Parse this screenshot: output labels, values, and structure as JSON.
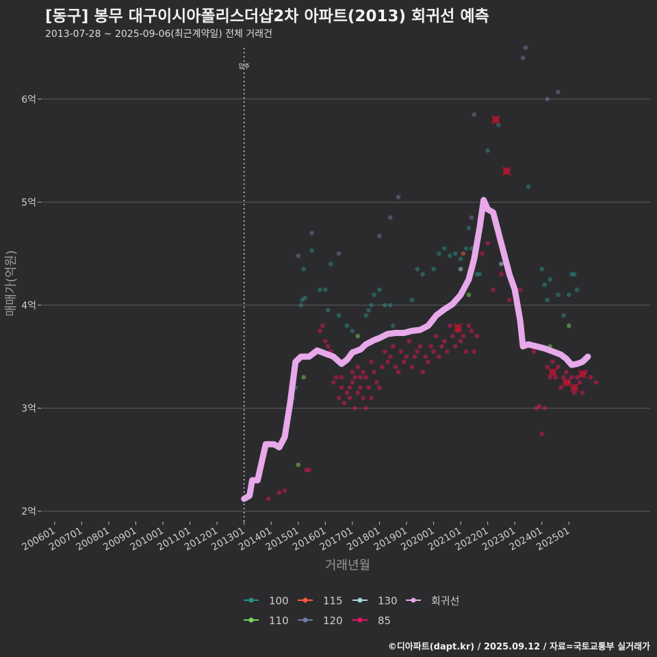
{
  "title": "[동구] 봉무 대구이시아폴리스더샵2차 아파트(2013) 회귀선 예측",
  "subtitle": "2013-07-28 ~ 2025-09-06(최근계약일) 전체 거래건",
  "footer": "©디아파트(dapt.kr) / 2025.09.12 / 자료=국토교통부 실거래가",
  "chart_data": {
    "type": "scatter",
    "xlabel": "거래년월",
    "ylabel": "매매가(억원)",
    "xlim": [
      2005.5,
      2028.0
    ],
    "ylim": [
      1.9,
      6.55
    ],
    "x_ticks": [
      "200601",
      "200701",
      "200801",
      "200901",
      "201001",
      "201101",
      "201201",
      "201301",
      "201401",
      "201501",
      "201601",
      "201701",
      "201801",
      "201901",
      "202001",
      "202101",
      "202201",
      "202301",
      "202401",
      "202501"
    ],
    "y_ticks": [
      {
        "value": 2,
        "label": "2억"
      },
      {
        "value": 3,
        "label": "3억"
      },
      {
        "value": 4,
        "label": "4억"
      },
      {
        "value": 5,
        "label": "5억"
      },
      {
        "value": 6,
        "label": "6억"
      }
    ],
    "move_in": {
      "x": 2013.0,
      "label": "입주"
    },
    "legend": [
      {
        "name": "100",
        "color": "#2a8f8a"
      },
      {
        "name": "110",
        "color": "#7bd35b"
      },
      {
        "name": "115",
        "color": "#ff5a3c"
      },
      {
        "name": "120",
        "color": "#6f7aa8"
      },
      {
        "name": "130",
        "color": "#a8d9dd"
      },
      {
        "name": "85",
        "color": "#e8135e"
      },
      {
        "name": "회귀선",
        "color": "#e7a9ea"
      }
    ],
    "series": [
      {
        "name": "100",
        "color": "#2a8f8a",
        "points": [
          [
            2014.8,
            3.1
          ],
          [
            2014.9,
            3.2
          ],
          [
            2015.1,
            4.0
          ],
          [
            2015.15,
            4.05
          ],
          [
            2015.2,
            4.35
          ],
          [
            2015.25,
            4.07
          ],
          [
            2015.5,
            4.53
          ],
          [
            2015.8,
            4.15
          ],
          [
            2016.0,
            4.15
          ],
          [
            2016.1,
            3.95
          ],
          [
            2016.2,
            4.4
          ],
          [
            2016.5,
            3.9
          ],
          [
            2016.8,
            3.8
          ],
          [
            2017.0,
            3.75
          ],
          [
            2017.5,
            3.9
          ],
          [
            2017.6,
            3.95
          ],
          [
            2017.7,
            4.0
          ],
          [
            2017.8,
            4.1
          ],
          [
            2018.0,
            4.15
          ],
          [
            2018.2,
            4.0
          ],
          [
            2018.4,
            4.0
          ],
          [
            2018.5,
            3.8
          ],
          [
            2019.2,
            4.05
          ],
          [
            2019.4,
            4.35
          ],
          [
            2019.6,
            4.3
          ],
          [
            2020.0,
            4.35
          ],
          [
            2020.2,
            4.5
          ],
          [
            2020.4,
            4.55
          ],
          [
            2020.6,
            4.48
          ],
          [
            2020.8,
            4.5
          ],
          [
            2021.0,
            4.45
          ],
          [
            2021.2,
            4.55
          ],
          [
            2021.3,
            4.75
          ],
          [
            2021.4,
            4.55
          ],
          [
            2021.6,
            4.3
          ],
          [
            2021.7,
            4.3
          ],
          [
            2022.0,
            5.5
          ],
          [
            2022.4,
            5.75
          ],
          [
            2023.5,
            5.15
          ],
          [
            2024.0,
            4.35
          ],
          [
            2024.1,
            4.2
          ],
          [
            2024.2,
            4.05
          ],
          [
            2024.3,
            4.25
          ],
          [
            2024.6,
            4.1
          ],
          [
            2024.8,
            3.9
          ],
          [
            2025.0,
            4.1
          ],
          [
            2025.1,
            4.3
          ],
          [
            2025.2,
            4.3
          ],
          [
            2025.3,
            4.15
          ]
        ]
      },
      {
        "name": "110",
        "color": "#7bd35b",
        "points": [
          [
            2015.0,
            2.45
          ],
          [
            2015.2,
            3.3
          ],
          [
            2017.2,
            3.7
          ],
          [
            2021.3,
            4.1
          ],
          [
            2024.3,
            3.6
          ],
          [
            2025.0,
            3.8
          ]
        ]
      },
      {
        "name": "115",
        "color": "#ff5a3c",
        "points": [
          [
            2021.1,
            4.5
          ],
          [
            2021.9,
            5.0
          ]
        ]
      },
      {
        "name": "120",
        "color": "#6f7aa8",
        "points": [
          [
            2015.0,
            4.48
          ],
          [
            2015.5,
            4.7
          ],
          [
            2016.5,
            4.5
          ],
          [
            2018.0,
            4.67
          ],
          [
            2018.4,
            4.85
          ],
          [
            2018.7,
            5.05
          ],
          [
            2021.5,
            5.85
          ],
          [
            2023.3,
            6.4
          ],
          [
            2023.4,
            6.5
          ],
          [
            2024.2,
            6.0
          ],
          [
            2024.6,
            6.07
          ],
          [
            2021.4,
            4.85
          ]
        ]
      },
      {
        "name": "130",
        "color": "#a8d9dd",
        "points": [
          [
            2021.0,
            4.35
          ],
          [
            2022.5,
            4.4
          ]
        ]
      },
      {
        "name": "85",
        "color": "#e8135e",
        "points": [
          [
            2013.9,
            2.12
          ],
          [
            2014.3,
            2.18
          ],
          [
            2014.5,
            2.2
          ],
          [
            2015.3,
            2.4
          ],
          [
            2015.4,
            2.4
          ],
          [
            2015.8,
            3.75
          ],
          [
            2015.9,
            3.8
          ],
          [
            2016.0,
            3.65
          ],
          [
            2016.1,
            3.6
          ],
          [
            2016.2,
            3.55
          ],
          [
            2016.3,
            3.5
          ],
          [
            2016.3,
            3.25
          ],
          [
            2016.4,
            3.3
          ],
          [
            2016.5,
            3.1
          ],
          [
            2016.6,
            3.3
          ],
          [
            2016.6,
            3.2
          ],
          [
            2016.7,
            3.05
          ],
          [
            2016.8,
            3.15
          ],
          [
            2016.9,
            3.1
          ],
          [
            2016.9,
            3.2
          ],
          [
            2017.0,
            3.25
          ],
          [
            2017.0,
            3.35
          ],
          [
            2017.1,
            3.0
          ],
          [
            2017.1,
            3.3
          ],
          [
            2017.2,
            3.15
          ],
          [
            2017.2,
            3.4
          ],
          [
            2017.3,
            3.3
          ],
          [
            2017.3,
            3.2
          ],
          [
            2017.4,
            3.1
          ],
          [
            2017.4,
            3.35
          ],
          [
            2017.5,
            3.0
          ],
          [
            2017.5,
            3.3
          ],
          [
            2017.6,
            3.2
          ],
          [
            2017.7,
            3.1
          ],
          [
            2017.7,
            3.45
          ],
          [
            2017.8,
            3.35
          ],
          [
            2017.9,
            3.25
          ],
          [
            2018.0,
            3.2
          ],
          [
            2018.1,
            3.4
          ],
          [
            2018.2,
            3.55
          ],
          [
            2018.3,
            3.45
          ],
          [
            2018.4,
            3.5
          ],
          [
            2018.5,
            3.6
          ],
          [
            2018.6,
            3.4
          ],
          [
            2018.7,
            3.35
          ],
          [
            2018.8,
            3.55
          ],
          [
            2018.9,
            3.45
          ],
          [
            2019.0,
            3.5
          ],
          [
            2019.1,
            3.65
          ],
          [
            2019.2,
            3.4
          ],
          [
            2019.3,
            3.5
          ],
          [
            2019.4,
            3.55
          ],
          [
            2019.5,
            3.6
          ],
          [
            2019.6,
            3.35
          ],
          [
            2019.7,
            3.5
          ],
          [
            2019.8,
            3.45
          ],
          [
            2019.9,
            3.6
          ],
          [
            2020.0,
            3.55
          ],
          [
            2020.1,
            3.7
          ],
          [
            2020.2,
            3.5
          ],
          [
            2020.3,
            3.6
          ],
          [
            2020.4,
            3.65
          ],
          [
            2020.5,
            3.55
          ],
          [
            2020.6,
            3.8
          ],
          [
            2020.7,
            3.7
          ],
          [
            2020.8,
            3.6
          ],
          [
            2020.9,
            3.75
          ],
          [
            2021.0,
            3.65
          ],
          [
            2021.1,
            3.7
          ],
          [
            2021.2,
            3.55
          ],
          [
            2021.3,
            3.8
          ],
          [
            2021.4,
            3.75
          ],
          [
            2021.5,
            3.55
          ],
          [
            2021.6,
            3.7
          ],
          [
            2021.8,
            4.5
          ],
          [
            2022.0,
            4.6
          ],
          [
            2022.2,
            4.15
          ],
          [
            2022.5,
            4.3
          ],
          [
            2022.8,
            4.05
          ],
          [
            2023.0,
            4.15
          ],
          [
            2023.2,
            4.15
          ],
          [
            2023.5,
            3.6
          ],
          [
            2023.7,
            3.55
          ],
          [
            2023.8,
            3.0
          ],
          [
            2023.9,
            3.02
          ],
          [
            2024.0,
            2.75
          ],
          [
            2024.1,
            3.0
          ],
          [
            2024.2,
            3.4
          ],
          [
            2024.3,
            3.3
          ],
          [
            2024.4,
            3.45
          ],
          [
            2024.5,
            3.3
          ],
          [
            2024.6,
            3.4
          ],
          [
            2024.7,
            3.2
          ],
          [
            2024.8,
            3.3
          ],
          [
            2024.9,
            3.35
          ],
          [
            2025.0,
            3.25
          ],
          [
            2025.1,
            3.3
          ],
          [
            2025.2,
            3.15
          ],
          [
            2025.3,
            3.3
          ],
          [
            2025.4,
            3.25
          ],
          [
            2025.5,
            3.15
          ],
          [
            2025.6,
            3.35
          ],
          [
            2025.8,
            3.3
          ],
          [
            2026.0,
            3.25
          ]
        ]
      },
      {
        "name": "회귀선",
        "color": "#e7a9ea",
        "points": [
          [
            2013.0,
            2.12
          ],
          [
            2013.2,
            2.15
          ],
          [
            2013.3,
            2.3
          ],
          [
            2013.5,
            2.3
          ],
          [
            2013.8,
            2.65
          ],
          [
            2014.1,
            2.65
          ],
          [
            2014.3,
            2.62
          ],
          [
            2014.5,
            2.72
          ],
          [
            2014.7,
            3.05
          ],
          [
            2014.9,
            3.45
          ],
          [
            2015.1,
            3.5
          ],
          [
            2015.4,
            3.5
          ],
          [
            2015.7,
            3.56
          ],
          [
            2016.0,
            3.53
          ],
          [
            2016.3,
            3.5
          ],
          [
            2016.6,
            3.43
          ],
          [
            2016.8,
            3.47
          ],
          [
            2017.0,
            3.54
          ],
          [
            2017.3,
            3.57
          ],
          [
            2017.5,
            3.62
          ],
          [
            2017.8,
            3.66
          ],
          [
            2018.0,
            3.68
          ],
          [
            2018.3,
            3.72
          ],
          [
            2018.6,
            3.73
          ],
          [
            2018.9,
            3.73
          ],
          [
            2019.2,
            3.75
          ],
          [
            2019.5,
            3.76
          ],
          [
            2019.8,
            3.8
          ],
          [
            2020.1,
            3.9
          ],
          [
            2020.4,
            3.96
          ],
          [
            2020.7,
            4.01
          ],
          [
            2021.0,
            4.1
          ],
          [
            2021.3,
            4.25
          ],
          [
            2021.5,
            4.45
          ],
          [
            2021.7,
            4.75
          ],
          [
            2021.85,
            5.02
          ],
          [
            2022.0,
            4.93
          ],
          [
            2022.2,
            4.9
          ],
          [
            2022.4,
            4.7
          ],
          [
            2022.6,
            4.5
          ],
          [
            2022.8,
            4.3
          ],
          [
            2023.0,
            4.15
          ],
          [
            2023.2,
            3.85
          ],
          [
            2023.3,
            3.6
          ],
          [
            2023.5,
            3.62
          ],
          [
            2023.8,
            3.6
          ],
          [
            2024.1,
            3.58
          ],
          [
            2024.4,
            3.55
          ],
          [
            2024.7,
            3.52
          ],
          [
            2024.9,
            3.48
          ],
          [
            2025.1,
            3.42
          ],
          [
            2025.3,
            3.43
          ],
          [
            2025.5,
            3.45
          ],
          [
            2025.7,
            3.5
          ]
        ]
      }
    ],
    "highlighted_transactions": [
      {
        "x": 2020.9,
        "y": 3.78
      },
      {
        "x": 2022.3,
        "y": 5.8
      },
      {
        "x": 2022.7,
        "y": 5.3
      },
      {
        "x": 2024.4,
        "y": 3.35
      },
      {
        "x": 2024.9,
        "y": 3.25
      },
      {
        "x": 2025.2,
        "y": 3.2
      },
      {
        "x": 2025.5,
        "y": 3.33
      }
    ]
  }
}
